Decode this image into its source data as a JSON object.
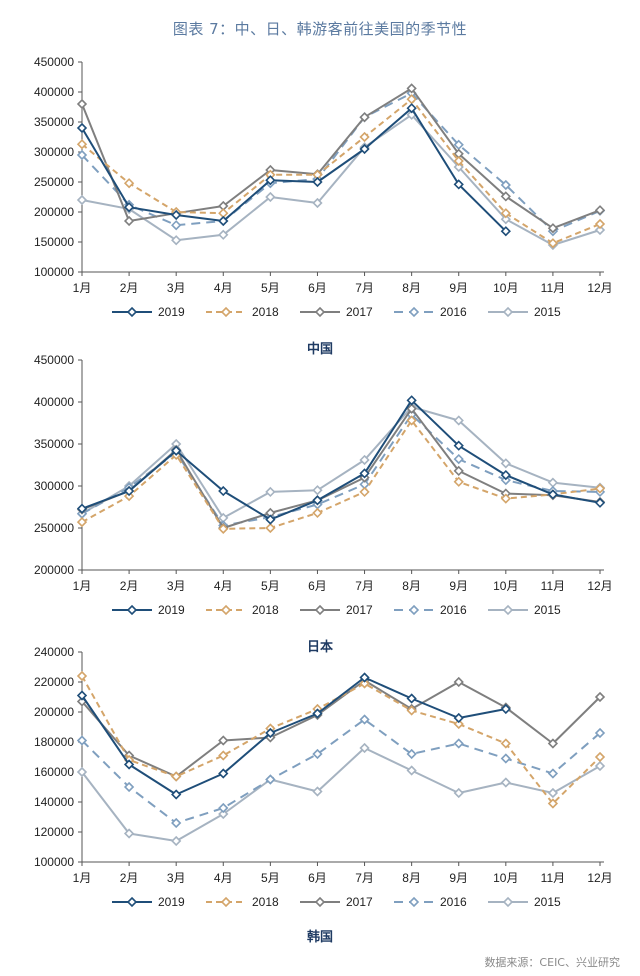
{
  "title": "图表 7：中、日、韩游客前往美国的季节性",
  "source": "数据来源：CEIC、兴业研究",
  "series_styles": [
    {
      "name": "2019",
      "color": "#1f4e79",
      "dash": "",
      "marker": "diamond"
    },
    {
      "name": "2018",
      "color": "#d4a56a",
      "dash": "6,4",
      "marker": "diamond"
    },
    {
      "name": "2017",
      "color": "#7f7f7f",
      "dash": "",
      "marker": "diamond"
    },
    {
      "name": "2016",
      "color": "#7f9fbf",
      "dash": "9,6",
      "marker": "diamond"
    },
    {
      "name": "2015",
      "color": "#a6b3c1",
      "dash": "",
      "marker": "diamond"
    }
  ],
  "chart_data": [
    {
      "type": "line",
      "caption": "中国",
      "categories": [
        "1月",
        "2月",
        "3月",
        "4月",
        "5月",
        "6月",
        "7月",
        "8月",
        "9月",
        "10月",
        "11月",
        "12月"
      ],
      "ylim": [
        100000,
        450000
      ],
      "yticks": [
        100000,
        150000,
        200000,
        250000,
        300000,
        350000,
        400000,
        450000
      ],
      "series": [
        {
          "name": "2019",
          "values": [
            340000,
            208000,
            195000,
            185000,
            253000,
            250000,
            305000,
            373000,
            246000,
            168000,
            null,
            null
          ]
        },
        {
          "name": "2018",
          "values": [
            313000,
            248000,
            200000,
            198000,
            262000,
            262000,
            325000,
            388000,
            285000,
            198000,
            148000,
            180000
          ]
        },
        {
          "name": "2017",
          "values": [
            380000,
            185000,
            198000,
            210000,
            270000,
            263000,
            358000,
            406000,
            297000,
            226000,
            173000,
            203000
          ]
        },
        {
          "name": "2016",
          "values": [
            295000,
            212000,
            178000,
            185000,
            248000,
            255000,
            358000,
            398000,
            312000,
            245000,
            168000,
            202000
          ]
        },
        {
          "name": "2015",
          "values": [
            220000,
            205000,
            153000,
            162000,
            225000,
            215000,
            308000,
            362000,
            275000,
            188000,
            145000,
            170000
          ]
        }
      ]
    },
    {
      "type": "line",
      "caption": "日本",
      "categories": [
        "1月",
        "2月",
        "3月",
        "4月",
        "5月",
        "6月",
        "7月",
        "8月",
        "9月",
        "10月",
        "11月",
        "12月"
      ],
      "ylim": [
        200000,
        450000
      ],
      "yticks": [
        200000,
        250000,
        300000,
        350000,
        400000,
        450000
      ],
      "series": [
        {
          "name": "2019",
          "values": [
            273000,
            294000,
            342000,
            294000,
            260000,
            283000,
            315000,
            402000,
            348000,
            313000,
            290000,
            280000
          ]
        },
        {
          "name": "2018",
          "values": [
            257000,
            288000,
            337000,
            249000,
            250000,
            268000,
            293000,
            378000,
            305000,
            285000,
            290000,
            297000
          ]
        },
        {
          "name": "2017",
          "values": [
            272000,
            294000,
            343000,
            250000,
            268000,
            283000,
            310000,
            392000,
            318000,
            291000,
            289000,
            281000
          ]
        },
        {
          "name": "2016",
          "values": [
            267000,
            298000,
            340000,
            253000,
            263000,
            278000,
            302000,
            385000,
            332000,
            307000,
            294000,
            293000
          ]
        },
        {
          "name": "2015",
          "values": [
            267000,
            300000,
            350000,
            262000,
            293000,
            295000,
            331000,
            394000,
            378000,
            327000,
            304000,
            298000
          ]
        }
      ]
    },
    {
      "type": "line",
      "caption": "韩国",
      "categories": [
        "1月",
        "2月",
        "3月",
        "4月",
        "5月",
        "6月",
        "7月",
        "8月",
        "9月",
        "10月",
        "11月",
        "12月"
      ],
      "ylim": [
        100000,
        240000
      ],
      "yticks": [
        100000,
        120000,
        140000,
        160000,
        180000,
        200000,
        220000,
        240000
      ],
      "series": [
        {
          "name": "2019",
          "values": [
            211000,
            165000,
            145000,
            159000,
            186000,
            199000,
            223000,
            209000,
            196000,
            202000,
            null,
            null
          ]
        },
        {
          "name": "2018",
          "values": [
            224000,
            168000,
            157000,
            171000,
            189000,
            202000,
            219000,
            201000,
            192000,
            179000,
            139000,
            170000
          ]
        },
        {
          "name": "2017",
          "values": [
            207000,
            171000,
            157000,
            181000,
            183000,
            198000,
            221000,
            202000,
            220000,
            203000,
            179000,
            210000
          ]
        },
        {
          "name": "2016",
          "values": [
            181000,
            150000,
            126000,
            136000,
            155000,
            172000,
            195000,
            172000,
            179000,
            169000,
            159000,
            186000
          ]
        },
        {
          "name": "2015",
          "values": [
            160000,
            119000,
            114000,
            132000,
            155000,
            147000,
            176000,
            161000,
            146000,
            153000,
            146000,
            164000
          ]
        }
      ]
    }
  ]
}
